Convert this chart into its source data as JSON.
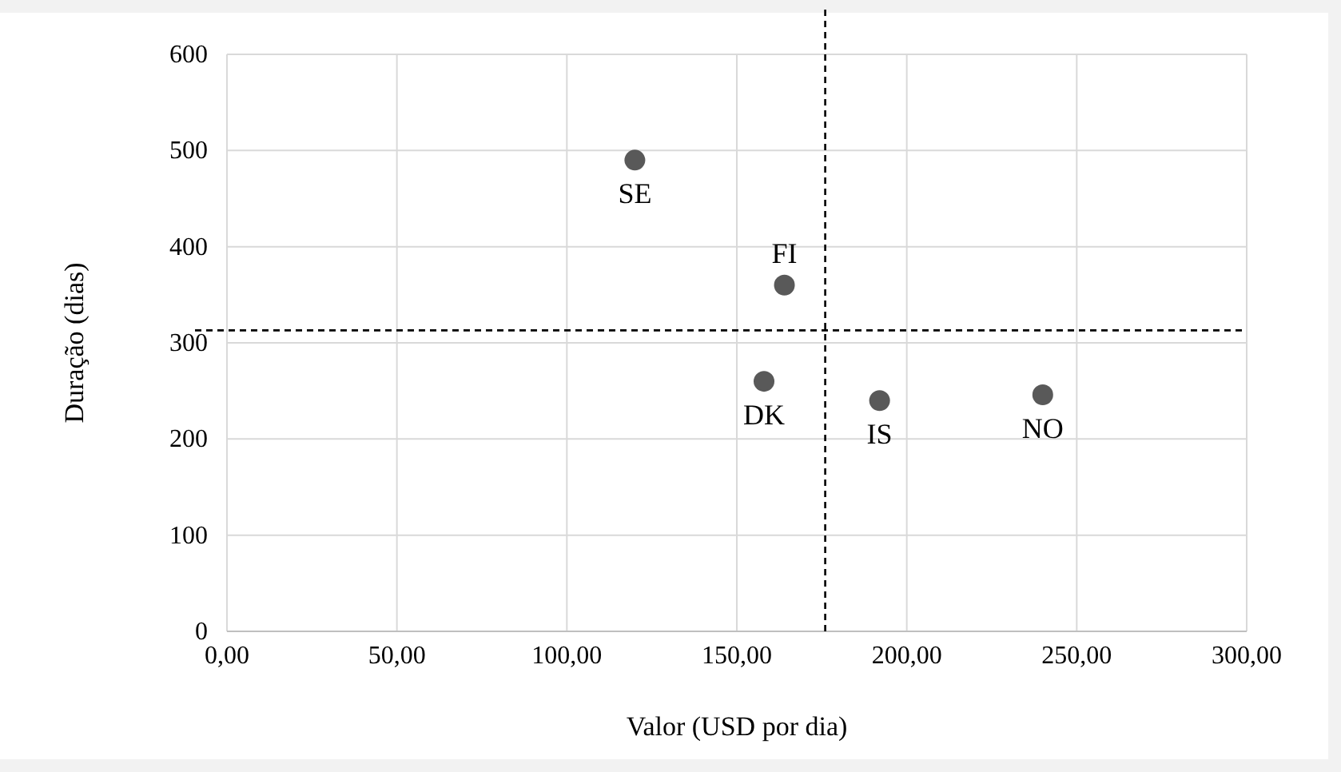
{
  "chart_data": {
    "type": "scatter",
    "xlabel": "Valor (USD por dia)",
    "ylabel": "Duração (dias)",
    "x": [
      120,
      164,
      158,
      192,
      240
    ],
    "series": [
      {
        "color": "#595959",
        "values": [
          490,
          360,
          260,
          240,
          246
        ]
      }
    ],
    "annotations": [
      {
        "text": "SE",
        "x": 120,
        "y": 490
      },
      {
        "text": "FI",
        "x": 164,
        "y": 360
      },
      {
        "text": "DK",
        "x": 158,
        "y": 260
      },
      {
        "text": "IS",
        "x": 192,
        "y": 240
      },
      {
        "text": "NO",
        "x": 240,
        "y": 246
      }
    ],
    "xlim": [
      0,
      300
    ],
    "xticks": [
      {
        "value": 0,
        "label": "0,00"
      },
      {
        "value": 50,
        "label": "50,00"
      },
      {
        "value": 100,
        "label": "100,00"
      },
      {
        "value": 150,
        "label": "150,00"
      },
      {
        "value": 200,
        "label": "200,00"
      },
      {
        "value": 250,
        "label": "250,00"
      },
      {
        "value": 300,
        "label": "300,00"
      }
    ],
    "ylim": [
      0,
      600
    ],
    "yticks": [
      0,
      100,
      200,
      300,
      400,
      500,
      600
    ],
    "ref_lines": [
      {
        "axis": "x",
        "value": 176,
        "color": "#000000",
        "line_style": "dashed"
      },
      {
        "axis": "y",
        "value": 313,
        "color": "#000000",
        "line_style": "dashed"
      }
    ],
    "grid": true,
    "marker": "circle"
  }
}
